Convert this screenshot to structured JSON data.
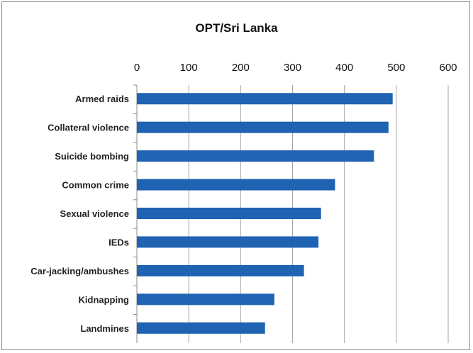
{
  "chart_data": {
    "type": "bar",
    "orientation": "horizontal",
    "title": "OPT/Sri Lanka",
    "categories": [
      "Armed raids",
      "Collateral violence",
      "Suicide bombing",
      "Common crime",
      "Sexual violence",
      "IEDs",
      "Car-jacking/ambushes",
      "Kidnapping",
      "Landmines"
    ],
    "values": [
      493,
      485,
      457,
      382,
      355,
      350,
      322,
      265,
      247
    ],
    "xlim": [
      0,
      600
    ],
    "xticks": [
      0,
      100,
      200,
      300,
      400,
      500,
      600
    ],
    "x_axis_position": "top",
    "grid": true,
    "bar_color": "#1f63b2"
  }
}
